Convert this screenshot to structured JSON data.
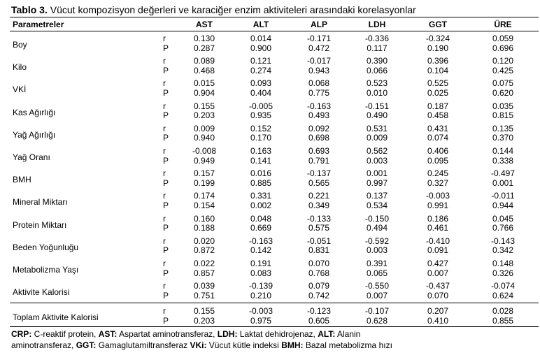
{
  "caption": {
    "label": "Tablo 3.",
    "text": " Vücut kompozisyon değerleri ve karaciğer enzim aktiviteleri arasındaki korelasyonlar"
  },
  "header": {
    "param": "Parametreler",
    "cols": [
      "AST",
      "ALT",
      "ALP",
      "LDH",
      "GGT",
      "ÜRE"
    ]
  },
  "rows": [
    {
      "name": "Boy",
      "r": [
        "0.130",
        "0.014",
        "-0.171",
        "-0.336",
        "-0.324",
        "0.059"
      ],
      "p": [
        "0.287",
        "0.900",
        "0.472",
        "0.117",
        "0.190",
        "0.696"
      ]
    },
    {
      "name": "Kilo",
      "r": [
        "0.089",
        "0.121",
        "-0.017",
        "0.390",
        "0.396",
        "0.120"
      ],
      "p": [
        "0.468",
        "0.274",
        "0.943",
        "0.066",
        "0.104",
        "0.425"
      ]
    },
    {
      "name": "VKİ",
      "r": [
        "0.015",
        "0.093",
        "0.068",
        "0.523",
        "0.525",
        "0.075"
      ],
      "p": [
        "0.904",
        "0.404",
        "0.775",
        "0.010",
        "0.025",
        "0.620"
      ]
    },
    {
      "name": "Kas Ağırlığı",
      "r": [
        "0.155",
        "-0.005",
        "-0.163",
        "-0.151",
        "0.187",
        "0.035"
      ],
      "p": [
        "0.203",
        "0.935",
        "0.493",
        "0.490",
        "0.458",
        "0.815"
      ]
    },
    {
      "name": "Yağ Ağırlığı",
      "r": [
        "0.009",
        "0.152",
        "0.092",
        "0.531",
        "0.431",
        "0.135"
      ],
      "p": [
        "0.940",
        "0.170",
        "0.698",
        "0.009",
        "0.074",
        "0.370"
      ]
    },
    {
      "name": "Yağ Oranı",
      "r": [
        "-0.008",
        "0.163",
        "0.693",
        "0.562",
        "0.406",
        "0.144"
      ],
      "p": [
        "0.949",
        "0.141",
        "0.791",
        "0.003",
        "0.095",
        "0.338"
      ]
    },
    {
      "name": "BMH",
      "r": [
        "0.157",
        "0.016",
        "-0.137",
        "0.001",
        "0.245",
        "-0.497"
      ],
      "p": [
        "0.199",
        "0.885",
        "0.565",
        "0.997",
        "0.327",
        "0.001"
      ]
    },
    {
      "name": "Mineral Miktarı",
      "r": [
        "0.174",
        "0.331",
        "0.221",
        "0.137",
        "-0.003",
        "-0.011"
      ],
      "p": [
        "0.154",
        "0.002",
        "0.349",
        "0.534",
        "0.991",
        "0.944"
      ]
    },
    {
      "name": "Protein Miktarı",
      "r": [
        "0.160",
        "0.048",
        "-0.133",
        "-0.150",
        "0.186",
        "0.045"
      ],
      "p": [
        "0.188",
        "0.669",
        "0.575",
        "0.494",
        "0.461",
        "0.766"
      ]
    },
    {
      "name": "Beden Yoğunluğu",
      "r": [
        "0.020",
        "-0.163",
        "-0.051",
        "-0.592",
        "-0.410",
        "-0.143"
      ],
      "p": [
        "0.872",
        "0.142",
        "0.831",
        "0.003",
        "0.091",
        "0.342"
      ]
    },
    {
      "name": "Metabolizma Yaşı",
      "r": [
        "0.022",
        "0.191",
        "0.070",
        "0.391",
        "0.427",
        "0.148"
      ],
      "p": [
        "0.857",
        "0.083",
        "0.768",
        "0.065",
        "0.007",
        "0.326"
      ]
    },
    {
      "name": "Aktivite Kalorisi",
      "r": [
        "0.039",
        "-0.139",
        "0.079",
        "-0.550",
        "-0.437",
        "-0.074"
      ],
      "p": [
        "0.751",
        "0.210",
        "0.742",
        "0.007",
        "0.070",
        "0.624"
      ]
    },
    {
      "name": "Toplam Aktivite Kalorisi",
      "r": [
        "0.155",
        "-0.003",
        "-0.123",
        "-0.107",
        "0.207",
        "0.028"
      ],
      "p": [
        "0.203",
        "0.975",
        "0.605",
        "0.628",
        "0.410",
        "0.855"
      ]
    }
  ],
  "labels": {
    "r": "r",
    "p": "P"
  },
  "footnote": {
    "line1": [
      {
        "b": "CRP:",
        "t": " C-reaktif protein, "
      },
      {
        "b": "AST:",
        "t": " Aspartat aminotransferaz, "
      },
      {
        "b": "LDH:",
        "t": " Laktat dehidrojenaz, "
      },
      {
        "b": "ALT:",
        "t": " Alanin"
      }
    ],
    "line2": [
      {
        "b": "",
        "t": "aminotransferaz, "
      },
      {
        "b": "GGT:",
        "t": " Gamaglutamiltransferaz "
      },
      {
        "b": "VKi:",
        "t": " Vücut kütle indeksi "
      },
      {
        "b": "BMH:",
        "t": " Bazal metabolizma hızı"
      }
    ]
  }
}
